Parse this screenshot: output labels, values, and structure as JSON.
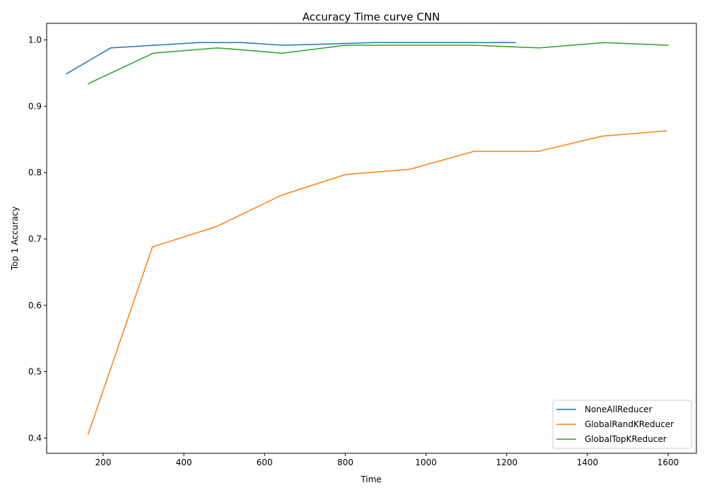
{
  "chart_data": {
    "type": "line",
    "title": "Accuracy Time curve CNN",
    "xlabel": "Time",
    "ylabel": "Top 1 Accuracy",
    "xlim": [
      60,
      1670
    ],
    "ylim": [
      0.377,
      1.025
    ],
    "xticks": [
      200,
      400,
      600,
      800,
      1000,
      1200,
      1400,
      1600
    ],
    "yticks": [
      0.4,
      0.5,
      0.6,
      0.7,
      0.8,
      0.9,
      1.0
    ],
    "xtick_labels": [
      "200",
      "400",
      "600",
      "800",
      "1000",
      "1200",
      "1400",
      "1600"
    ],
    "ytick_labels": [
      "0.4",
      "0.5",
      "0.6",
      "0.7",
      "0.8",
      "0.9",
      "1.0"
    ],
    "grid": false,
    "legend_position": "lower-right",
    "series": [
      {
        "name": "NoneAllReducer",
        "color": "#1f77b4",
        "x": [
          109,
          219,
          327,
          437,
          545,
          646,
          762,
          872,
          987,
          1114,
          1222
        ],
        "y": [
          0.949,
          0.988,
          0.992,
          0.996,
          0.996,
          0.992,
          0.994,
          0.996,
          0.996,
          0.996,
          0.996
        ]
      },
      {
        "name": "GlobalRandKReducer",
        "color": "#ff7f0e",
        "x": [
          163,
          322,
          482,
          642,
          800,
          960,
          1118,
          1278,
          1437,
          1596
        ],
        "y": [
          0.406,
          0.688,
          0.719,
          0.766,
          0.797,
          0.805,
          0.832,
          0.832,
          0.855,
          0.863
        ]
      },
      {
        "name": "GlobalTopKReducer",
        "color": "#2ca02c",
        "x": [
          163,
          324,
          484,
          643,
          801,
          960,
          1120,
          1280,
          1441,
          1600
        ],
        "y": [
          0.934,
          0.98,
          0.988,
          0.98,
          0.992,
          0.992,
          0.992,
          0.988,
          0.996,
          0.992
        ]
      }
    ]
  }
}
